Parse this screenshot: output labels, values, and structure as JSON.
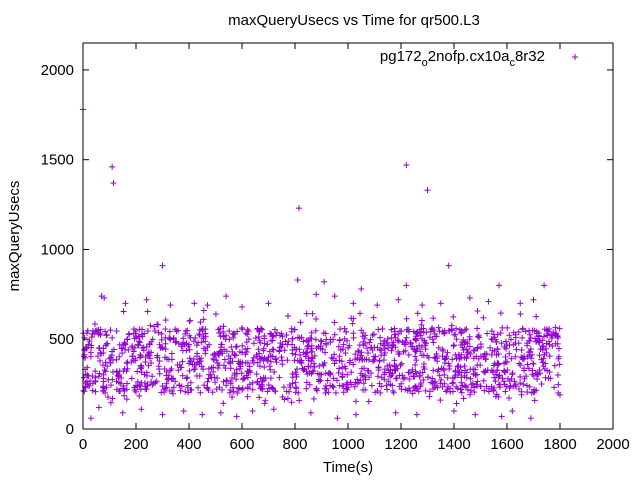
{
  "chart_data": {
    "type": "scatter",
    "title": "maxQueryUsecs vs Time for qr500.L3",
    "xlabel": "Time(s)",
    "ylabel": "maxQueryUsecs",
    "xlim": [
      0,
      2000
    ],
    "ylim": [
      0,
      2150
    ],
    "xticks": [
      "0",
      "200",
      "400",
      "600",
      "800",
      "1000",
      "1200",
      "1400",
      "1600",
      "1800",
      "2000"
    ],
    "yticks": [
      "0",
      "500",
      "1000",
      "1500",
      "2000"
    ],
    "grid": false,
    "legend_position": "top-right",
    "series": [
      {
        "name": "pg172_o2nofp.cx10a_c8r32",
        "name_main": "pg172",
        "name_sub1": "o",
        "name_mid": "2nofp.cx10a",
        "name_sub2": "c",
        "name_end": "8r32",
        "color": "#9400d3",
        "marker": "plus",
        "points": [
          [
            0,
            1780
          ],
          [
            5,
            210
          ],
          [
            10,
            230
          ],
          [
            20,
            470
          ],
          [
            30,
            60
          ],
          [
            70,
            740
          ],
          [
            80,
            730
          ],
          [
            110,
            1460
          ],
          [
            115,
            1370
          ],
          [
            300,
            910
          ],
          [
            815,
            1230
          ],
          [
            1220,
            1470
          ],
          [
            1300,
            1330
          ],
          [
            1380,
            910
          ],
          [
            810,
            830
          ],
          [
            910,
            820
          ],
          [
            1050,
            780
          ],
          [
            1220,
            800
          ],
          [
            1570,
            800
          ],
          [
            1740,
            800
          ],
          [
            160,
            700
          ],
          [
            240,
            720
          ],
          [
            330,
            690
          ],
          [
            420,
            700
          ],
          [
            470,
            690
          ],
          [
            540,
            740
          ],
          [
            600,
            680
          ],
          [
            700,
            700
          ],
          [
            880,
            750
          ],
          [
            950,
            740
          ],
          [
            1020,
            700
          ],
          [
            1110,
            690
          ],
          [
            1190,
            720
          ],
          [
            1280,
            690
          ],
          [
            1350,
            700
          ],
          [
            1460,
            730
          ],
          [
            1530,
            710
          ],
          [
            1650,
            700
          ],
          [
            1700,
            720
          ],
          [
            60,
            120
          ],
          [
            150,
            90
          ],
          [
            220,
            110
          ],
          [
            300,
            80
          ],
          [
            380,
            100
          ],
          [
            450,
            80
          ],
          [
            520,
            90
          ],
          [
            580,
            70
          ],
          [
            640,
            100
          ],
          [
            720,
            110
          ],
          [
            860,
            90
          ],
          [
            960,
            60
          ],
          [
            1030,
            80
          ],
          [
            1180,
            90
          ],
          [
            1260,
            80
          ],
          [
            1400,
            100
          ],
          [
            1480,
            80
          ],
          [
            1580,
            70
          ],
          [
            1620,
            100
          ],
          [
            1690,
            60
          ],
          [
            1800,
            190
          ]
        ]
      }
    ]
  }
}
